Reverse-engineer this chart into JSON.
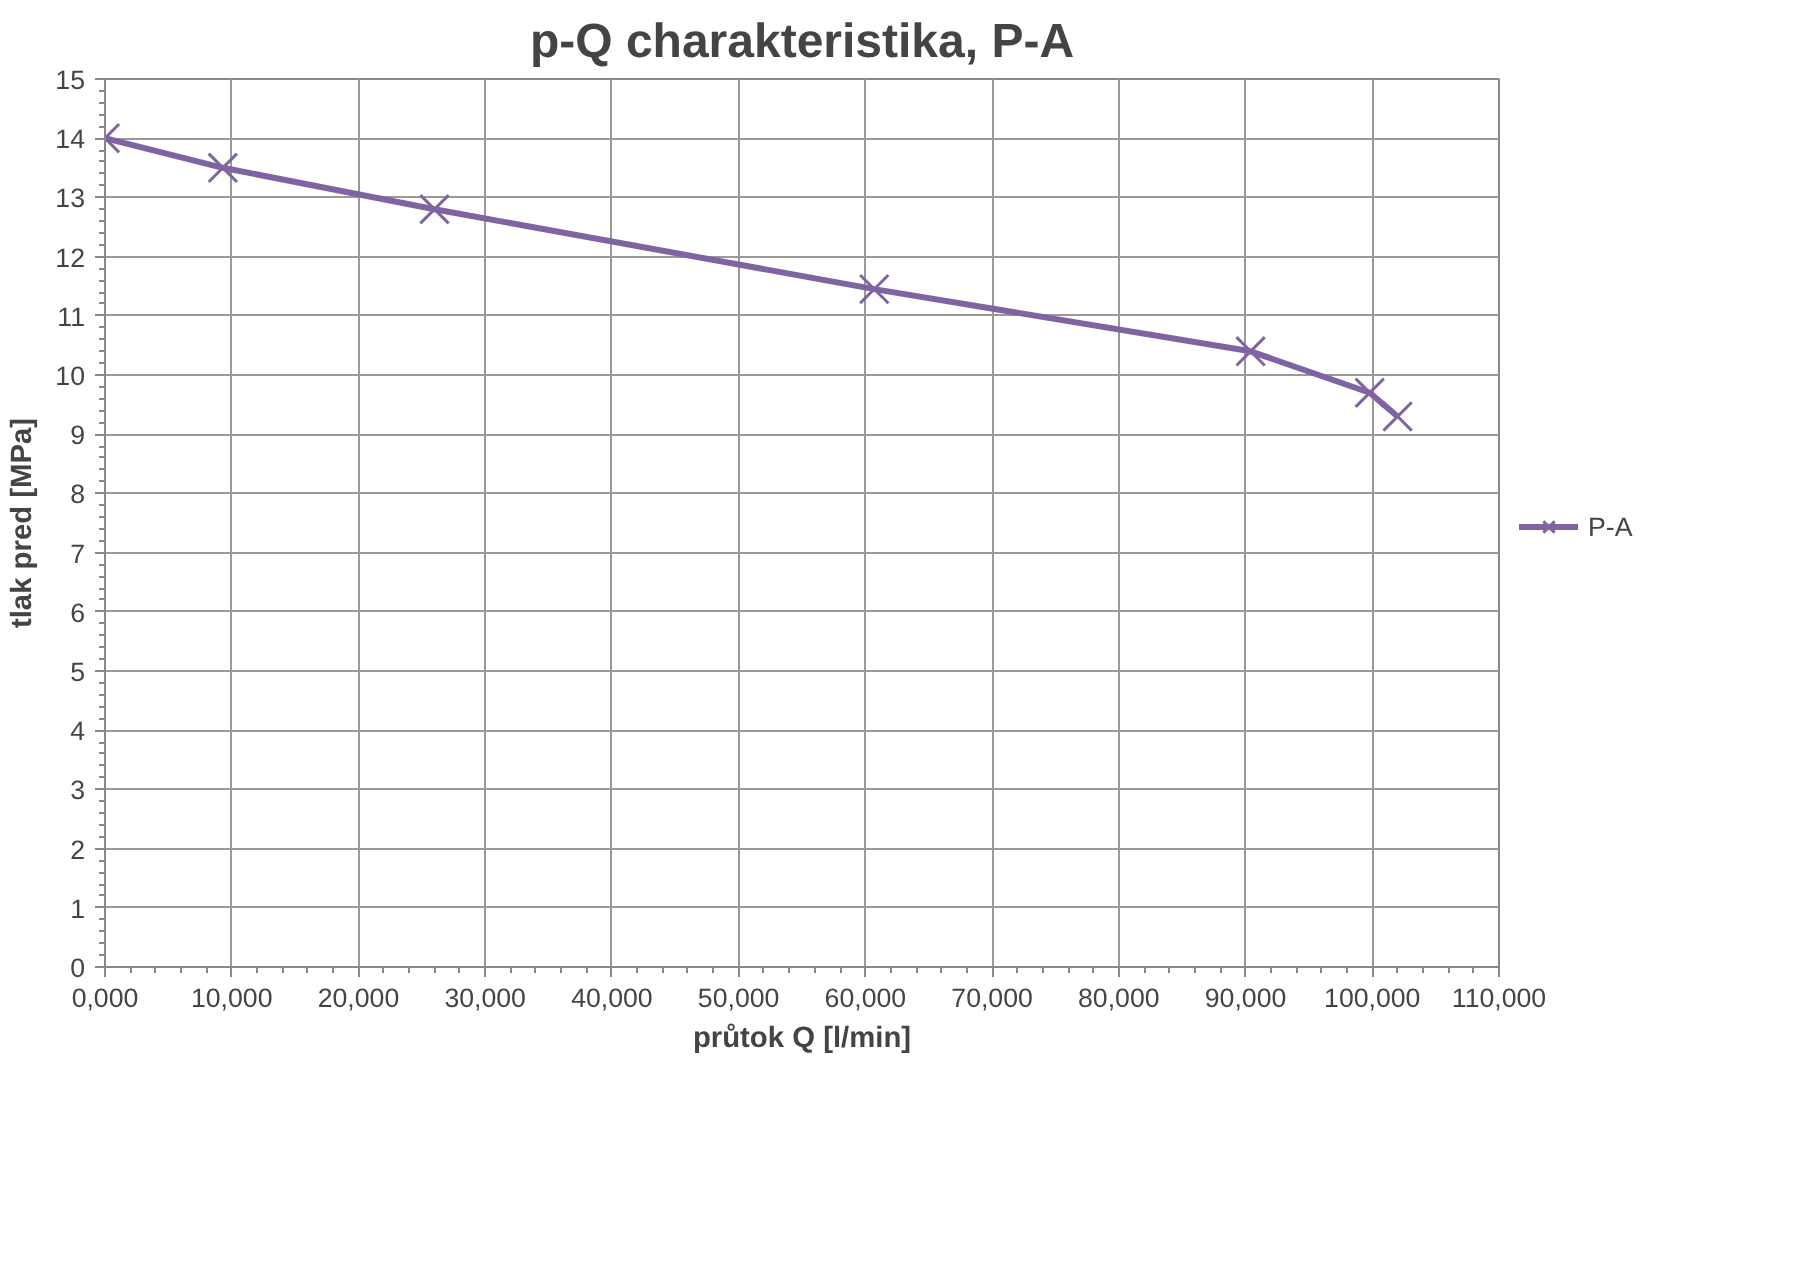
{
  "chart_data": {
    "type": "line",
    "title": "p-Q charakteristika, P-A",
    "xlabel": "průtok Q [l/min]",
    "ylabel": "tlak pred [MPa]",
    "x": [
      0,
      9300,
      26000,
      60700,
      90400,
      99800,
      102000
    ],
    "series": [
      {
        "name": "P-A",
        "color": "#8064a2",
        "values": [
          14.0,
          13.5,
          12.8,
          11.45,
          10.4,
          9.7,
          9.3
        ]
      }
    ],
    "xlim": [
      0,
      110000
    ],
    "ylim": [
      0,
      15
    ],
    "xticks": [
      {
        "value": 0,
        "label": "0,000"
      },
      {
        "value": 10000,
        "label": "10,000"
      },
      {
        "value": 20000,
        "label": "20,000"
      },
      {
        "value": 30000,
        "label": "30,000"
      },
      {
        "value": 40000,
        "label": "40,000"
      },
      {
        "value": 50000,
        "label": "50,000"
      },
      {
        "value": 60000,
        "label": "60,000"
      },
      {
        "value": 70000,
        "label": "70,000"
      },
      {
        "value": 80000,
        "label": "80,000"
      },
      {
        "value": 90000,
        "label": "90,000"
      },
      {
        "value": 100000,
        "label": "100,000"
      },
      {
        "value": 110000,
        "label": "110,000"
      }
    ],
    "yticks": [
      0,
      1,
      2,
      3,
      4,
      5,
      6,
      7,
      8,
      9,
      10,
      11,
      12,
      13,
      14,
      15
    ],
    "grid": true,
    "legend": "right",
    "marker": "cross",
    "line_style": "solid"
  }
}
